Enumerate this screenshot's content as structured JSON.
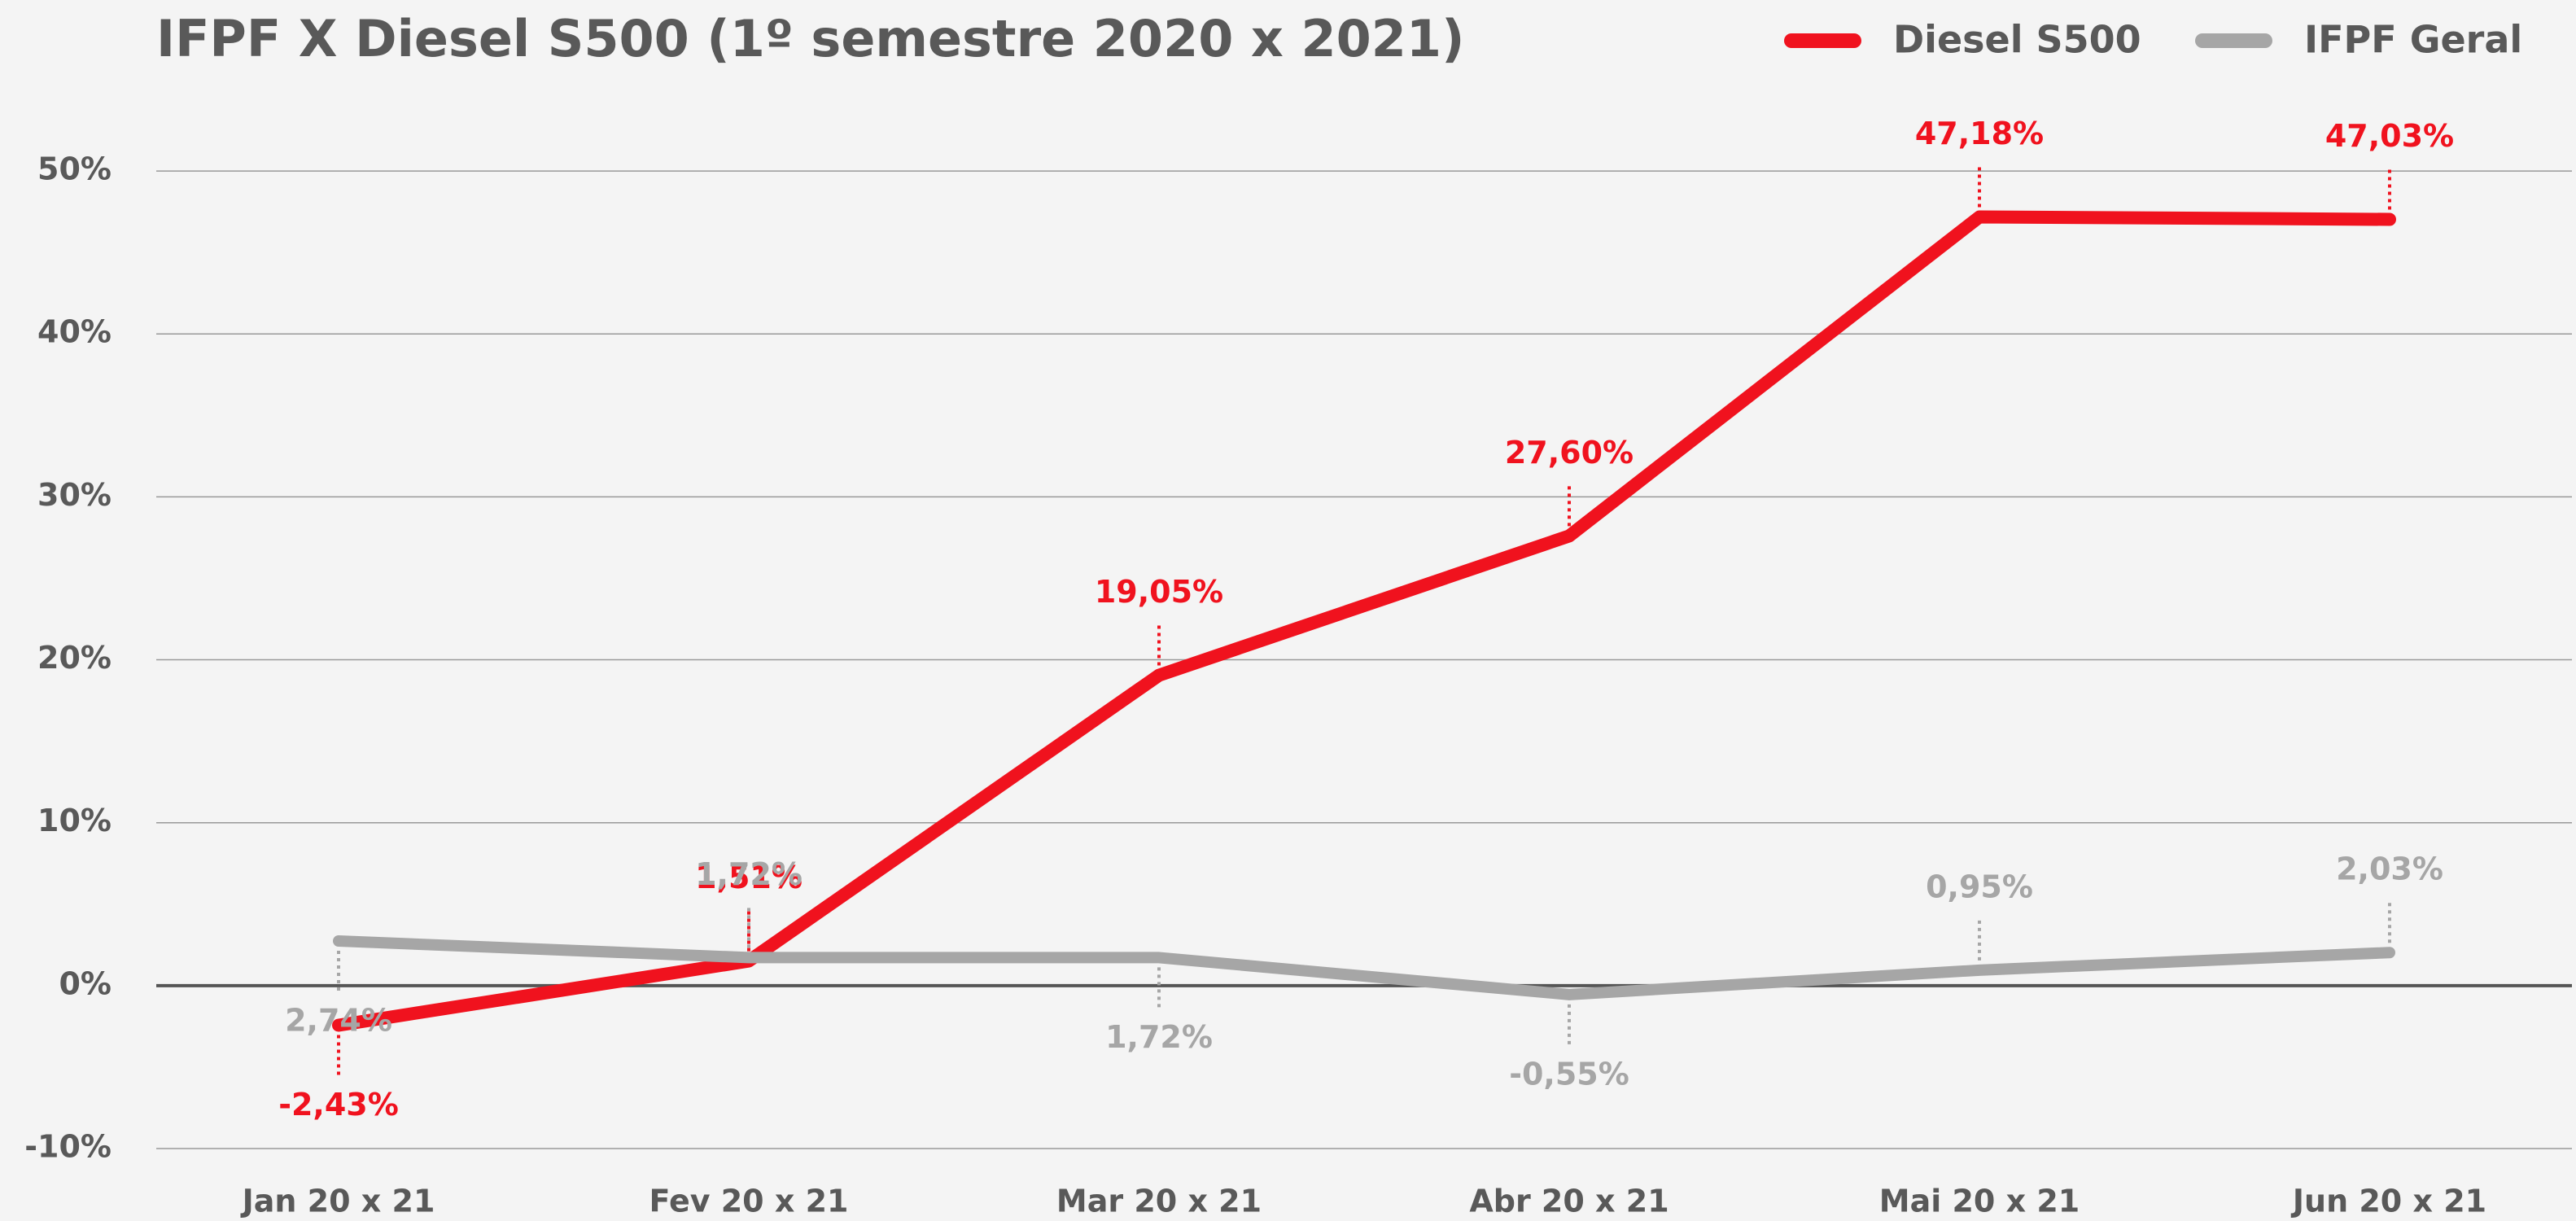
{
  "chart_data": {
    "type": "line",
    "title": "IFPF X Diesel S500 (1º semestre 2020 x 2021)",
    "categories": [
      "Jan 20 x 21",
      "Fev 20 x 21",
      "Mar 20 x 21",
      "Abr 20 x 21",
      "Mai 20 x 21",
      "Jun 20 x 21"
    ],
    "series": [
      {
        "name": "Diesel S500",
        "color": "#f0121e",
        "values": [
          -2.43,
          1.51,
          19.05,
          27.6,
          47.18,
          47.03
        ],
        "value_labels": [
          "-2,43%",
          "1,51%",
          "19,05%",
          "27,60%",
          "47,18%",
          "47,03%"
        ]
      },
      {
        "name": "IFPF Geral",
        "color": "#a6a6a6",
        "values": [
          2.74,
          1.72,
          1.72,
          -0.55,
          0.95,
          2.03
        ],
        "value_labels": [
          "2,74%",
          "1,72%",
          "1,72%",
          "-0,55%",
          "0,95%",
          "2,03%"
        ]
      }
    ],
    "ylim": [
      -10,
      55
    ],
    "yticks": [
      {
        "value": -10,
        "label": "-10%"
      },
      {
        "value": 0,
        "label": "0%"
      },
      {
        "value": 10,
        "label": "10%"
      },
      {
        "value": 20,
        "label": "20%"
      },
      {
        "value": 30,
        "label": "30%"
      },
      {
        "value": 40,
        "label": "40%"
      },
      {
        "value": 50,
        "label": "50%"
      }
    ],
    "grid": true,
    "legend": "upper right"
  }
}
